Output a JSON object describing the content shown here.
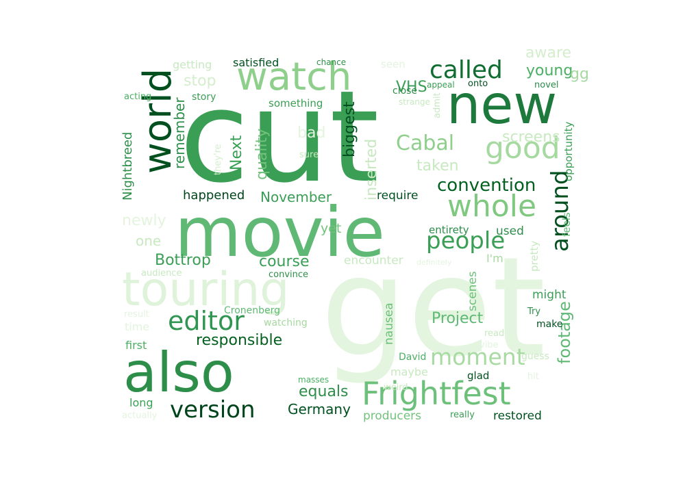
{
  "words": [
    {
      "text": "get",
      "color": "#e3f4df"
    },
    {
      "text": "cut",
      "color": "#3a9e55"
    },
    {
      "text": "movie",
      "color": "#5fb874"
    },
    {
      "text": "also",
      "color": "#2c8e49"
    },
    {
      "text": "new",
      "color": "#1d7a3c"
    },
    {
      "text": "touring",
      "color": "#dff2da"
    },
    {
      "text": "watch",
      "color": "#8fcf8c"
    },
    {
      "text": "world",
      "color": "#00501f"
    },
    {
      "text": "Frightfest",
      "color": "#6cc07a"
    },
    {
      "text": "good",
      "color": "#a6d9a0"
    },
    {
      "text": "whole",
      "color": "#7fc87f"
    },
    {
      "text": "editor",
      "color": "#2e9650"
    },
    {
      "text": "called",
      "color": "#0f6d31"
    },
    {
      "text": "people",
      "color": "#3a9e55"
    },
    {
      "text": "version",
      "color": "#00441b"
    },
    {
      "text": "moment",
      "color": "#a8dba2"
    },
    {
      "text": "around",
      "color": "#00501f"
    },
    {
      "text": "Cabal",
      "color": "#8fcf8c"
    },
    {
      "text": "convention",
      "color": "#03601f"
    },
    {
      "text": "Project",
      "color": "#5fb874"
    },
    {
      "text": "footage",
      "color": "#5fb874"
    },
    {
      "text": "responsible",
      "color": "#03601f"
    },
    {
      "text": "Bottrop",
      "color": "#3a9e55"
    },
    {
      "text": "course",
      "color": "#3a9e55"
    },
    {
      "text": "quality",
      "color": "#72c27b"
    },
    {
      "text": "November",
      "color": "#3a9e55"
    },
    {
      "text": "equals",
      "color": "#2c8e49"
    },
    {
      "text": "Germany",
      "color": "#00501f"
    },
    {
      "text": "VHS",
      "color": "#3a9e55"
    },
    {
      "text": "taken",
      "color": "#c7e9c0"
    },
    {
      "text": "screens",
      "color": "#c7e9c0"
    },
    {
      "text": "remember",
      "color": "#2c8e49"
    },
    {
      "text": "happened",
      "color": "#00441b"
    },
    {
      "text": "Next",
      "color": "#3a9e55"
    },
    {
      "text": "biggest",
      "color": "#00501f"
    },
    {
      "text": "inserted",
      "color": "#c7e9c0"
    },
    {
      "text": "stop",
      "color": "#d4eecd"
    },
    {
      "text": "young",
      "color": "#4aaf62"
    },
    {
      "text": "aware",
      "color": "#d4eecd"
    },
    {
      "text": "gg",
      "color": "#a6d9a0"
    },
    {
      "text": "newly",
      "color": "#e3f4df"
    },
    {
      "text": "one",
      "color": "#c7e9c0"
    },
    {
      "text": "encounter",
      "color": "#c7e9c0"
    },
    {
      "text": "used",
      "color": "#2c8e49"
    },
    {
      "text": "might",
      "color": "#3a9e55"
    },
    {
      "text": "scenes",
      "color": "#6cc07a"
    },
    {
      "text": "nausea",
      "color": "#6cc07a"
    },
    {
      "text": "Nightbreed",
      "color": "#2c8e49"
    },
    {
      "text": "require",
      "color": "#00501f"
    },
    {
      "text": "yet",
      "color": "#72c27b"
    },
    {
      "text": "entirety",
      "color": "#2c8e49"
    },
    {
      "text": "feels",
      "color": "#5fb874"
    },
    {
      "text": "opportunity",
      "color": "#3a9e55"
    },
    {
      "text": "pretty",
      "color": "#c7e9c0"
    },
    {
      "text": "I'm",
      "color": "#a6d9a0"
    },
    {
      "text": "first",
      "color": "#4aaf62"
    },
    {
      "text": "time",
      "color": "#e3f4df"
    },
    {
      "text": "long",
      "color": "#3a9e55"
    },
    {
      "text": "restored",
      "color": "#00501f"
    },
    {
      "text": "producers",
      "color": "#72c27b"
    },
    {
      "text": "really",
      "color": "#3a9e55"
    },
    {
      "text": "glad",
      "color": "#00501f"
    },
    {
      "text": "maybe",
      "color": "#c7e9c0"
    },
    {
      "text": "David",
      "color": "#4aaf62"
    },
    {
      "text": "guess",
      "color": "#c7e9c0"
    },
    {
      "text": "make",
      "color": "#00501f"
    },
    {
      "text": "Try",
      "color": "#2c8e49"
    },
    {
      "text": "read",
      "color": "#c7e9c0"
    },
    {
      "text": "vibe",
      "color": "#e3f4df"
    },
    {
      "text": "hit",
      "color": "#e3f4df"
    },
    {
      "text": "weird",
      "color": "#c7e9c0"
    },
    {
      "text": "masses",
      "color": "#4aaf62"
    },
    {
      "text": "actually",
      "color": "#e3f4df"
    },
    {
      "text": "Cronenberg",
      "color": "#5fb874"
    },
    {
      "text": "watching",
      "color": "#a6d9a0"
    },
    {
      "text": "result",
      "color": "#e3f4df"
    },
    {
      "text": "audience",
      "color": "#c7e9c0"
    },
    {
      "text": "convince",
      "color": "#2c8e49"
    },
    {
      "text": "definitely",
      "color": "#e3f4df"
    },
    {
      "text": "something",
      "color": "#3a9e55"
    },
    {
      "text": "story",
      "color": "#3a9e55"
    },
    {
      "text": "acting",
      "color": "#4aaf62"
    },
    {
      "text": "getting",
      "color": "#c7e9c0"
    },
    {
      "text": "satisfied",
      "color": "#00501f"
    },
    {
      "text": "chance",
      "color": "#2c8e49"
    },
    {
      "text": "seen",
      "color": "#e3f4df"
    },
    {
      "text": "close",
      "color": "#2c8e49"
    },
    {
      "text": "appeal",
      "color": "#3a9e55"
    },
    {
      "text": "onto",
      "color": "#00501f"
    },
    {
      "text": "novel",
      "color": "#2c8e49"
    },
    {
      "text": "strange",
      "color": "#c7e9c0"
    },
    {
      "text": "admit",
      "color": "#c7e9c0"
    },
    {
      "text": "bad",
      "color": "#e3f4df"
    },
    {
      "text": "sure",
      "color": "#c7e9c0"
    },
    {
      "text": "they're",
      "color": "#d4eecd"
    }
  ]
}
